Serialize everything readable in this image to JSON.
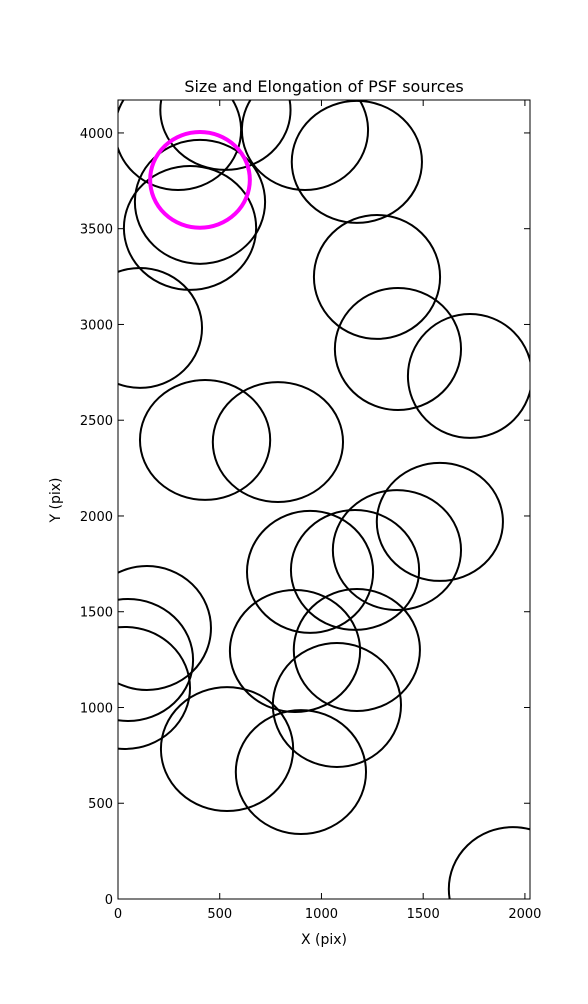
{
  "chart_data": {
    "type": "ellipse",
    "title": "Size and Elongation of PSF sources",
    "x_label": "X (pix)",
    "y_label": "Y (pix)",
    "xlim": [
      0,
      2025
    ],
    "ylim": [
      0,
      4172
    ],
    "xticks": [
      0,
      500,
      1000,
      1500,
      2000
    ],
    "yticks": [
      0,
      500,
      1000,
      1500,
      2000,
      2500,
      3000,
      3500,
      4000
    ],
    "series": [
      {
        "color": "#000000",
        "x": [
          295,
          528,
          919,
          1174,
          354,
          403,
          1273,
          108,
          1376,
          1730,
          428,
          786,
          1582,
          1371,
          1165,
          944,
          142,
          49,
          34,
          870,
          1174,
          1076,
          536,
          899,
          1941
        ],
        "y": [
          4015,
          4120,
          4015,
          3849,
          3504,
          3640,
          3248,
          2982,
          2872,
          2731,
          2397,
          2386,
          1969,
          1822,
          1718,
          1708,
          1415,
          1248,
          1102,
          1295,
          1300,
          1013,
          783,
          663,
          52
        ],
        "width": [
          620,
          640,
          620,
          640,
          650,
          640,
          620,
          610,
          620,
          610,
          640,
          640,
          620,
          630,
          630,
          620,
          630,
          640,
          640,
          640,
          620,
          630,
          650,
          640,
          630
        ],
        "height": [
          626,
          626,
          626,
          637,
          647,
          647,
          647,
          626,
          637,
          647,
          626,
          626,
          616,
          626,
          626,
          637,
          647,
          637,
          637,
          637,
          637,
          647,
          647,
          647,
          647
        ]
      },
      {
        "color": "#ff00ff",
        "x": [
          403
        ],
        "y": [
          3755
        ],
        "width": [
          490
        ],
        "height": [
          500
        ]
      }
    ]
  }
}
